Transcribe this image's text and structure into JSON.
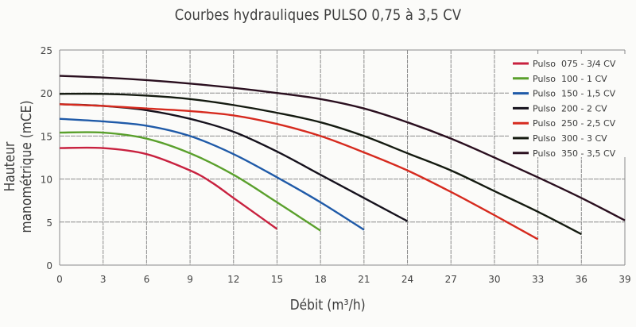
{
  "chart_data": {
    "type": "line",
    "title": "Courbes hydrauliques PULSO 0,75 à 3,5 CV",
    "xlabel": "Débit (m³/h)",
    "ylabel": "Hauteur manométrique (mCE)",
    "xlim": [
      0,
      39
    ],
    "ylim": [
      0,
      25
    ],
    "xticks": [
      0,
      3,
      6,
      9,
      12,
      15,
      18,
      21,
      24,
      27,
      30,
      33,
      36,
      39
    ],
    "yticks": [
      0,
      5,
      10,
      15,
      20,
      25
    ],
    "grid": true,
    "legend_position": "top-right",
    "series": [
      {
        "name": "Pulso 075 - 3/4 CV",
        "model": "075",
        "power": "3/4 CV",
        "color": "#c8213f",
        "x": [
          0,
          3,
          6,
          9,
          10.5,
          12,
          13.5,
          15
        ],
        "y": [
          13.6,
          13.6,
          12.9,
          11.0,
          9.6,
          7.8,
          6.0,
          4.2
        ]
      },
      {
        "name": "Pulso 100 - 1 CV",
        "model": "100",
        "power": "1 CV",
        "color": "#5aa02c",
        "x": [
          0,
          3,
          6,
          9,
          12,
          15,
          18
        ],
        "y": [
          15.4,
          15.4,
          14.7,
          13.0,
          10.5,
          7.3,
          4.0
        ]
      },
      {
        "name": "Pulso 150 - 1,5 CV",
        "model": "150",
        "power": "1,5 CV",
        "color": "#1f5aa8",
        "x": [
          0,
          3,
          6,
          9,
          12,
          15,
          18,
          21
        ],
        "y": [
          17.0,
          16.7,
          16.2,
          15.0,
          12.9,
          10.2,
          7.3,
          4.1
        ]
      },
      {
        "name": "Pulso 200 - 2 CV",
        "model": "200",
        "power": "2 CV",
        "color": "#15111c",
        "x": [
          0,
          3,
          6,
          9,
          12,
          15,
          18,
          21,
          24
        ],
        "y": [
          18.7,
          18.5,
          18.0,
          17.0,
          15.5,
          13.2,
          10.5,
          7.8,
          5.1
        ]
      },
      {
        "name": "Pulso 250 - 2,5 CV",
        "model": "250",
        "power": "2,5 CV",
        "color": "#d62a1e",
        "x": [
          0,
          3,
          6,
          9,
          12,
          15,
          18,
          21,
          24,
          27,
          30,
          33
        ],
        "y": [
          18.7,
          18.5,
          18.2,
          17.9,
          17.4,
          16.4,
          15.0,
          13.1,
          11.0,
          8.5,
          5.8,
          3.0
        ]
      },
      {
        "name": "Pulso 300 - 3 CV",
        "model": "300",
        "power": "3 CV",
        "color": "#141a10",
        "x": [
          0,
          3,
          6,
          9,
          12,
          15,
          18,
          21,
          24,
          27,
          30,
          33,
          36
        ],
        "y": [
          19.9,
          19.9,
          19.7,
          19.3,
          18.6,
          17.7,
          16.6,
          15.0,
          13.0,
          11.0,
          8.6,
          6.2,
          3.6
        ]
      },
      {
        "name": "Pulso 350 - 3,5 CV",
        "model": "350",
        "power": "3,5 CV",
        "color": "#2a0f1f",
        "x": [
          0,
          3,
          6,
          9,
          12,
          15,
          18,
          21,
          24,
          27,
          30,
          33,
          36,
          39
        ],
        "y": [
          22.0,
          21.8,
          21.5,
          21.1,
          20.6,
          20.0,
          19.3,
          18.2,
          16.6,
          14.7,
          12.5,
          10.2,
          7.8,
          5.2
        ]
      }
    ]
  },
  "labels": {
    "title": "Courbes hydrauliques PULSO 0,75 à 3,5 CV",
    "xlabel": "Débit (m³/h)",
    "ylabel": "Hauteur manométrique (mCE)"
  },
  "colors": {
    "grid": "#8a8a8a",
    "background": "#fbfbf9",
    "text": "#3a3a3a"
  }
}
